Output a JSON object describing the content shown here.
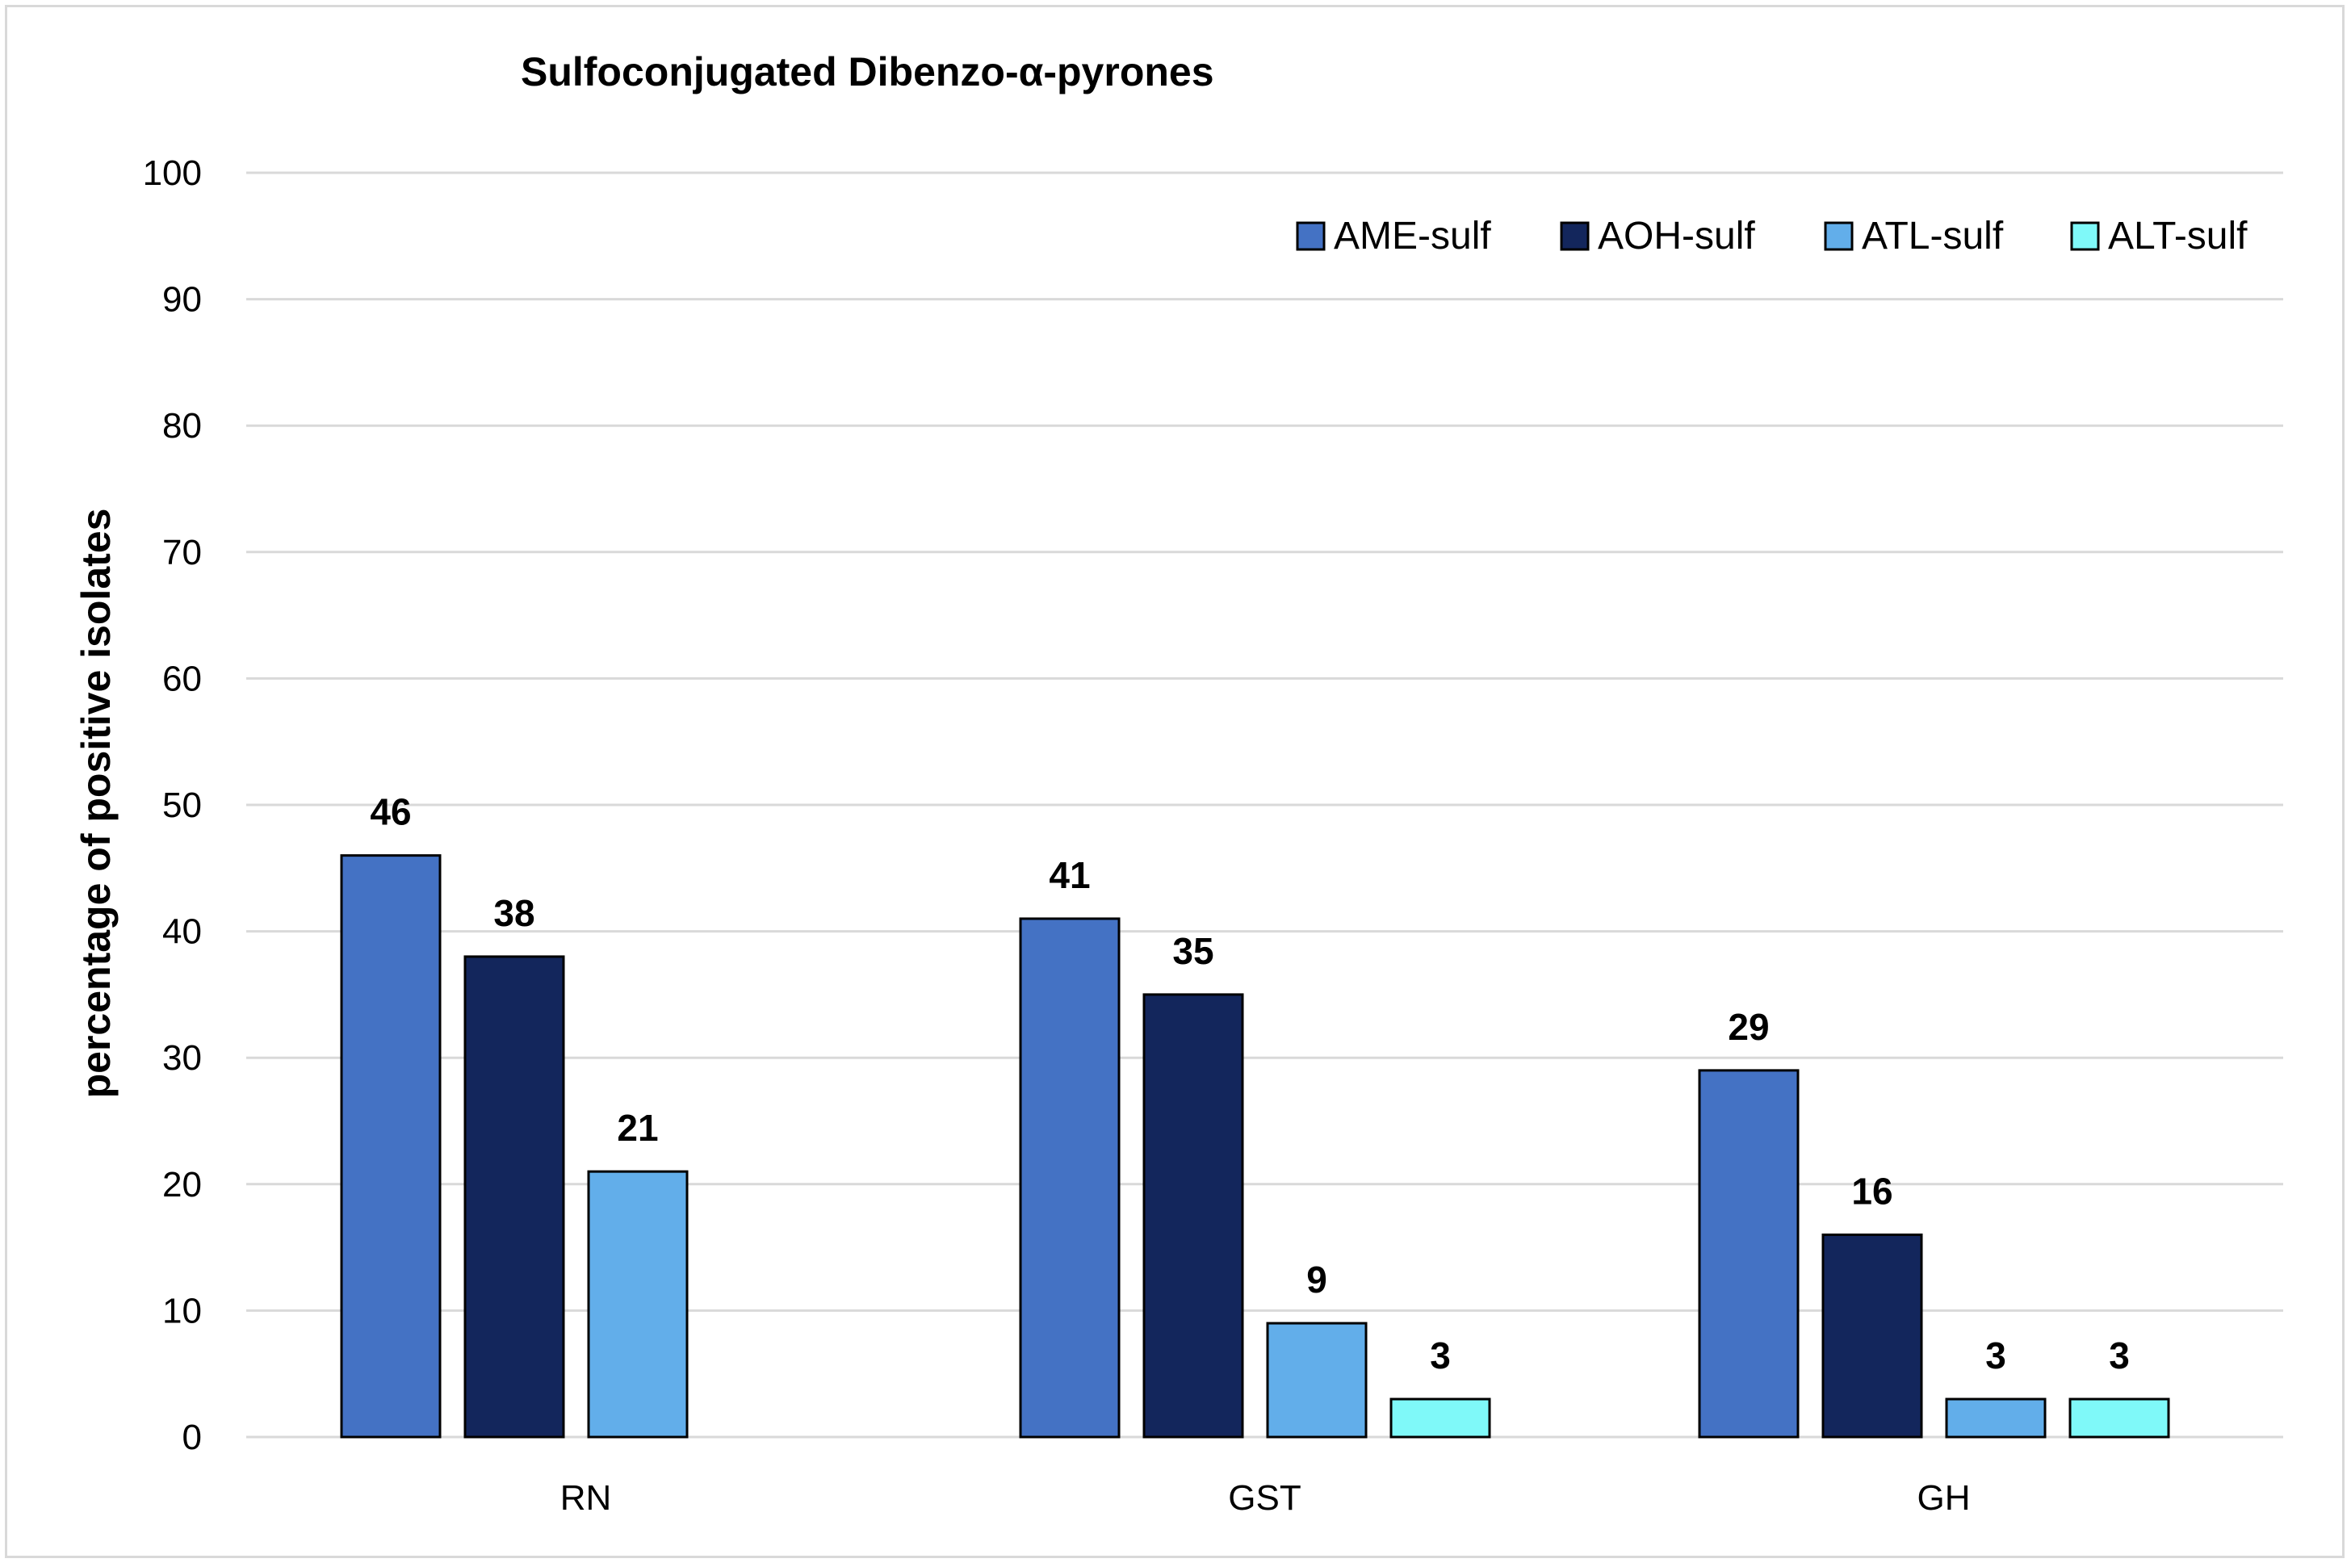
{
  "chart_data": {
    "type": "bar",
    "title": "Sulfoconjugated Dibenzo-α-pyrones",
    "xlabel": "",
    "ylabel": "percentage of positive isolates",
    "ylim": [
      0,
      100
    ],
    "yticks": [
      0,
      10,
      20,
      30,
      40,
      50,
      60,
      70,
      80,
      90,
      100
    ],
    "grid": true,
    "legend_position": "top-right",
    "categories": [
      "RN",
      "GST",
      "GH"
    ],
    "series": [
      {
        "name": "AME-sulf",
        "color": "#4472c4",
        "values": [
          46,
          41,
          29
        ],
        "labels": [
          "46",
          "41",
          "29"
        ]
      },
      {
        "name": "AOH-sulf",
        "color": "#13265c",
        "values": [
          38,
          35,
          16
        ],
        "labels": [
          "38",
          "35",
          "16"
        ]
      },
      {
        "name": "ATL-sulf",
        "color": "#62aeea",
        "values": [
          21,
          9,
          3
        ],
        "labels": [
          "21",
          "9",
          "3"
        ]
      },
      {
        "name": "ALT-sulf",
        "color": "#7ff9f9",
        "values": [
          0,
          3,
          3
        ],
        "labels": [
          null,
          "3",
          "3"
        ]
      }
    ]
  }
}
